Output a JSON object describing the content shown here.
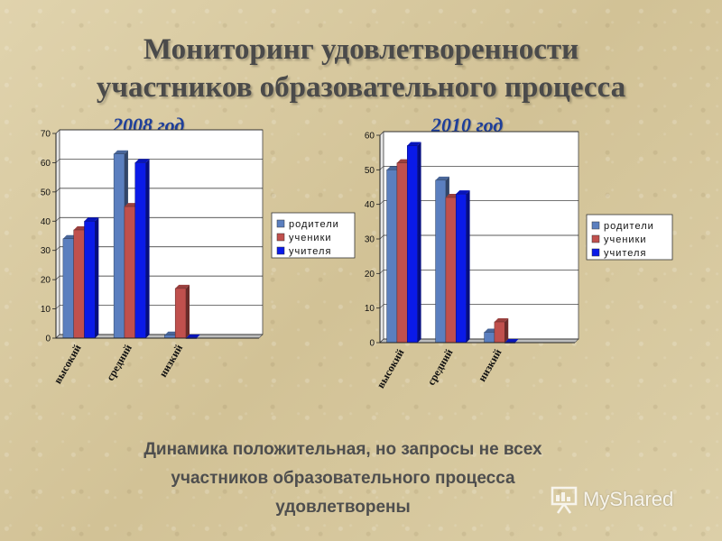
{
  "slide": {
    "title_line1": "Мониторинг удовлетворенности",
    "title_line2": "участников образовательного процесса",
    "footer_line1": "Динамика положительная, но запросы не всех",
    "footer_line2": "участников образовательного процесса",
    "footer_line3": "удовлетворены",
    "watermark": "MyShared",
    "watermark_icon": "presentation-board-icon"
  },
  "colors": {
    "series": [
      "#5b7fbf",
      "#c0504d",
      "#0a1ae8"
    ]
  },
  "chart_data": [
    {
      "type": "bar",
      "title": "2008 год",
      "categories": [
        "высокий",
        "средний",
        "низкий"
      ],
      "series": [
        {
          "name": "родители",
          "values": [
            34,
            63,
            1
          ]
        },
        {
          "name": "ученики",
          "values": [
            37,
            45,
            17
          ]
        },
        {
          "name": "учителя",
          "values": [
            40,
            60,
            0
          ]
        }
      ],
      "ylim": [
        0,
        70
      ],
      "yticks": [
        0,
        10,
        20,
        30,
        40,
        50,
        60,
        70
      ],
      "grid": true,
      "legend": "right"
    },
    {
      "type": "bar",
      "title": "2010 год",
      "categories": [
        "высокий",
        "средний",
        "низкий"
      ],
      "series": [
        {
          "name": "родители",
          "values": [
            50,
            47,
            3
          ]
        },
        {
          "name": "ученики",
          "values": [
            52,
            42,
            6
          ]
        },
        {
          "name": "учителя",
          "values": [
            57,
            43,
            0
          ]
        }
      ],
      "ylim": [
        0,
        60
      ],
      "yticks": [
        0,
        10,
        20,
        30,
        40,
        50,
        60
      ],
      "grid": true,
      "legend": "right"
    }
  ]
}
